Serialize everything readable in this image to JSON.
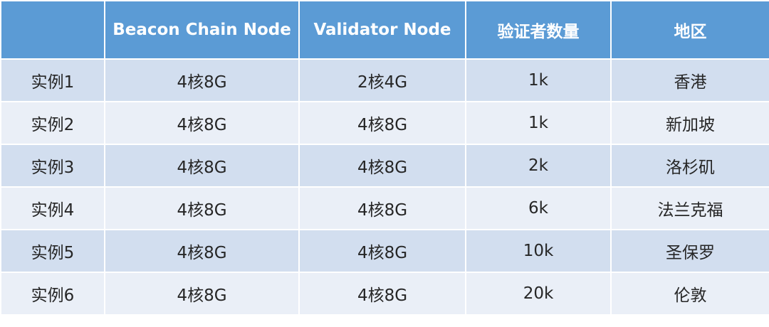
{
  "table": {
    "headers": [
      "",
      "Beacon Chain Node",
      "Validator Node",
      "验证者数量",
      "地区"
    ],
    "rows": [
      [
        "实例1",
        "4核8G",
        "2核4G",
        "1k",
        "香港"
      ],
      [
        "实例2",
        "4核8G",
        "4核8G",
        "1k",
        "新加坡"
      ],
      [
        "实例3",
        "4核8G",
        "4核8G",
        "2k",
        "洛杉矶"
      ],
      [
        "实例4",
        "4核8G",
        "4核8G",
        "6k",
        "法兰克福"
      ],
      [
        "实例5",
        "4核8G",
        "4核8G",
        "10k",
        "圣保罗"
      ],
      [
        "实例6",
        "4核8G",
        "4核8G",
        "20k",
        "伦敦"
      ]
    ]
  },
  "colors": {
    "header_bg": "#5b9bd5",
    "header_text": "#ffffff",
    "row_odd_bg": "#d2deef",
    "row_even_bg": "#eaeff7",
    "body_text": "#262626",
    "grid_lines": "#ffffff"
  }
}
